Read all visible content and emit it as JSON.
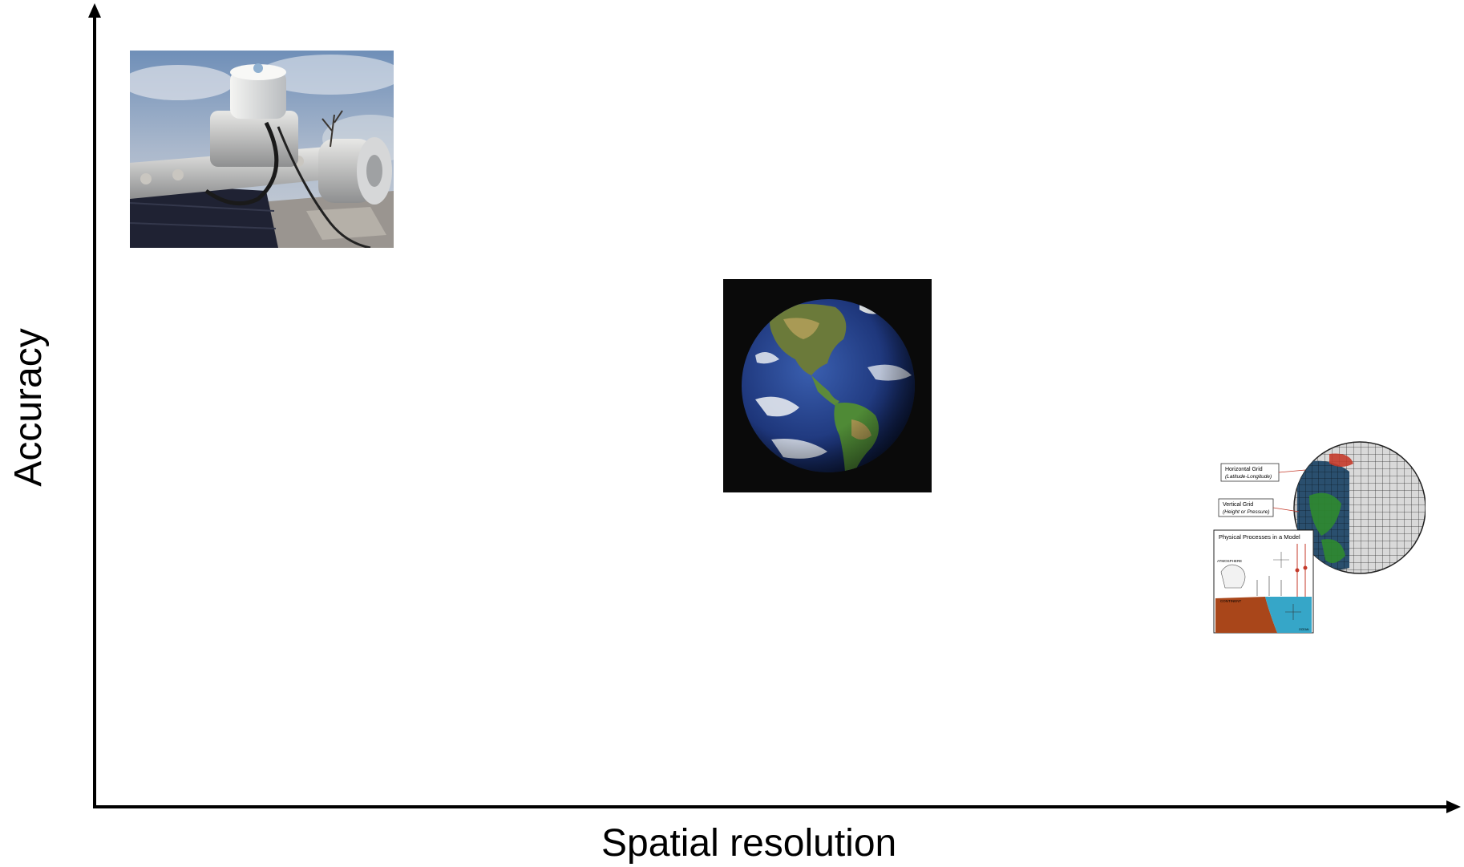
{
  "axes": {
    "x_label": "Spatial resolution",
    "y_label": "Accuracy",
    "color": "#000000"
  },
  "images": [
    {
      "name": "ground-sensor-photo",
      "description_icon": "pyranometer-photo",
      "position_in_chart": "top-left"
    },
    {
      "name": "earth-satellite-image",
      "description_icon": "earth-globe-photo",
      "position_in_chart": "center"
    },
    {
      "name": "climate-model-diagram",
      "description_icon": "gridded-globe-diagram",
      "position_in_chart": "bottom-right",
      "labels": {
        "horizontal_grid": "Horizontal Grid",
        "horizontal_grid_sub": "(Latitude-Longitude)",
        "vertical_grid": "Vertical Grid",
        "vertical_grid_sub": "(Height or Pressure)",
        "panel_title": "Physical Processes in a Model",
        "atmosphere": "ATMOSPHERE",
        "continent": "CONTINENT",
        "ocean": "OCEAN"
      }
    }
  ]
}
